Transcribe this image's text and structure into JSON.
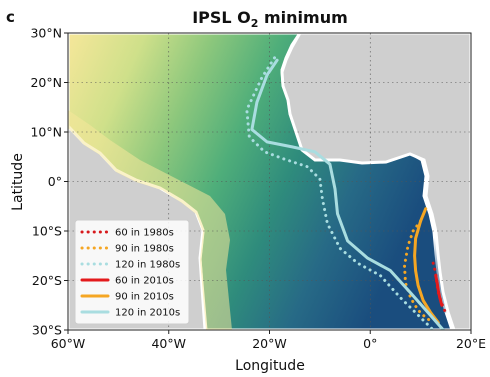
{
  "chart_data": {
    "type": "heatmap",
    "panel_label": "c",
    "title_main": "IPSL O",
    "title_sub": "2",
    "title_rest": " minimum",
    "xlabel": "Longitude",
    "ylabel": "Latitude",
    "xlim": [
      -60,
      20
    ],
    "ylim": [
      -30,
      30
    ],
    "x_ticks": [
      {
        "value": -60,
        "label": "60°W"
      },
      {
        "value": -40,
        "label": "40°W"
      },
      {
        "value": -20,
        "label": "20°W"
      },
      {
        "value": 0,
        "label": "0°"
      },
      {
        "value": 20,
        "label": "20°E"
      }
    ],
    "y_ticks": [
      {
        "value": 30,
        "label": "30°N"
      },
      {
        "value": 20,
        "label": "20°N"
      },
      {
        "value": 10,
        "label": "10°N"
      },
      {
        "value": 0,
        "label": "0°"
      },
      {
        "value": -10,
        "label": "10°S"
      },
      {
        "value": -20,
        "label": "20°S"
      },
      {
        "value": -30,
        "label": "30°S"
      }
    ],
    "grid": true,
    "legend_position": "bottom-left",
    "colors": {
      "land": "#cfcfcf",
      "coast": "#ffffff",
      "high_o2": "#f6e79a",
      "mid_o2": "#4fae7a",
      "low_o2": "#1a4d7e",
      "very_low_o2": "#0b2f6b"
    },
    "series": [
      {
        "name": "60 in 1980s",
        "color": "#d7191c",
        "style": "dotted",
        "x": [
          12.5,
          13.0,
          13.2,
          13.5,
          14.0,
          14.5,
          15.0
        ],
        "y": [
          -16.5,
          -18.5,
          -20.5,
          -22.5,
          -24.0,
          -25.5,
          -26.5
        ]
      },
      {
        "name": "90 in 1980s",
        "color": "#f5a623",
        "style": "dotted",
        "x": [
          10.0,
          8.5,
          7.5,
          6.8,
          7.0,
          8.0,
          9.5,
          11.0,
          12.5
        ],
        "y": [
          -8.0,
          -10.0,
          -13.0,
          -17.0,
          -20.5,
          -23.5,
          -26.0,
          -27.5,
          -28.5
        ]
      },
      {
        "name": "120 in 1980s",
        "color": "#a9dde0",
        "style": "dotted",
        "x": [
          -19.0,
          -21.5,
          -24.5,
          -24.0,
          -21.0,
          -17.0,
          -12.5,
          -10.0,
          -9.5,
          -8.5,
          -6.0,
          -2.5,
          2.0,
          6.0,
          10.0,
          12.5
        ],
        "y": [
          25.0,
          21.0,
          14.5,
          9.0,
          6.0,
          4.5,
          3.0,
          0.5,
          -3.5,
          -8.5,
          -13.5,
          -16.5,
          -19.0,
          -23.5,
          -27.5,
          -30.0
        ]
      },
      {
        "name": "60 in 2010s",
        "color": "#e31a1c",
        "style": "solid",
        "x": [
          13.0,
          13.3,
          13.5,
          13.8,
          14.2
        ],
        "y": [
          -19.0,
          -20.5,
          -22.0,
          -23.5,
          -25.0
        ]
      },
      {
        "name": "90 in 2010s",
        "color": "#f5a623",
        "style": "solid",
        "x": [
          11.0,
          10.0,
          9.0,
          8.8,
          9.0,
          9.5,
          10.5,
          12.0,
          13.5
        ],
        "y": [
          -5.5,
          -8.0,
          -11.5,
          -15.0,
          -18.0,
          -21.0,
          -24.0,
          -26.5,
          -28.5
        ]
      },
      {
        "name": "120 in 2010s",
        "color": "#a9dde0",
        "style": "solid",
        "x": [
          -18.5,
          -20.5,
          -22.5,
          -23.5,
          -20.5,
          -15.5,
          -11.0,
          -8.0,
          -7.0,
          -6.5,
          -4.5,
          -0.5,
          4.0,
          8.0,
          11.5,
          14.5
        ],
        "y": [
          24.5,
          21.5,
          16.0,
          10.5,
          8.0,
          7.0,
          6.0,
          3.5,
          -1.5,
          -6.5,
          -12.0,
          -15.5,
          -18.0,
          -22.5,
          -26.5,
          -30.0
        ]
      }
    ],
    "legend": [
      {
        "label": "60 in 1980s",
        "color": "#d7191c",
        "style": "dotted"
      },
      {
        "label": "90 in 1980s",
        "color": "#f5a623",
        "style": "dotted"
      },
      {
        "label": "120 in 1980s",
        "color": "#a9dde0",
        "style": "dotted"
      },
      {
        "label": "60 in 2010s",
        "color": "#e31a1c",
        "style": "solid"
      },
      {
        "label": "90 in 2010s",
        "color": "#f5a623",
        "style": "solid"
      },
      {
        "label": "120 in 2010s",
        "color": "#a9dde0",
        "style": "solid"
      }
    ]
  }
}
